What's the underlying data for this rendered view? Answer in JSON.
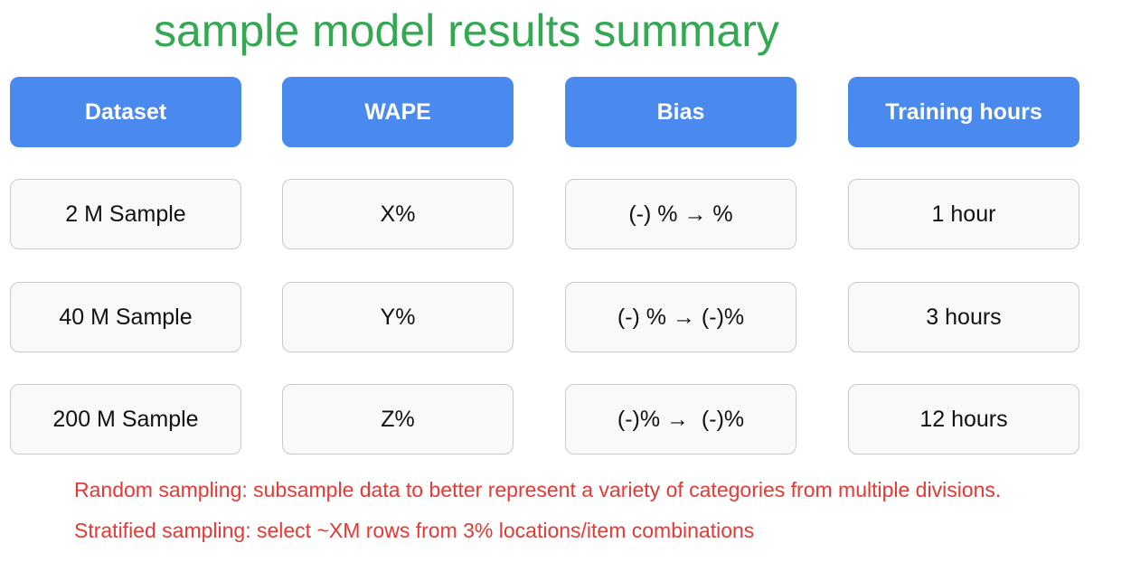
{
  "title": "sample model results summary",
  "colors": {
    "title": "#34a853",
    "header_bg": "#4a89ee",
    "header_text": "#ffffff",
    "cell_bg": "#f8f9fa",
    "cell_border": "#c8cacd",
    "note_text": "#e53935"
  },
  "headers": [
    "Dataset",
    "WAPE",
    "Bias",
    "Training hours"
  ],
  "rows": [
    [
      "2 M Sample",
      "X%",
      "(-) % → %",
      "1 hour"
    ],
    [
      "40 M Sample",
      "Y%",
      "(-) % → (-)%",
      "3 hours"
    ],
    [
      "200 M Sample",
      "Z%",
      "(-)% →  (-)%",
      "12 hours"
    ]
  ],
  "notes": [
    "Random sampling: subsample data to better represent a variety of categories from multiple divisions.",
    "Stratified sampling: select ~XM rows from 3% locations/item combinations"
  ]
}
